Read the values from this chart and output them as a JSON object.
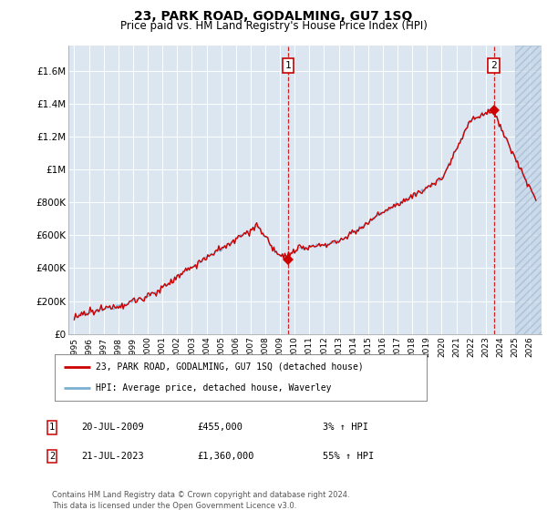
{
  "title": "23, PARK ROAD, GODALMING, GU7 1SQ",
  "subtitle": "Price paid vs. HM Land Registry's House Price Index (HPI)",
  "legend_line1": "23, PARK ROAD, GODALMING, GU7 1SQ (detached house)",
  "legend_line2": "HPI: Average price, detached house, Waverley",
  "annotation1_label": "1",
  "annotation1_date": "20-JUL-2009",
  "annotation1_value": 455000,
  "annotation1_pct": "3% ↑ HPI",
  "annotation2_label": "2",
  "annotation2_date": "21-JUL-2023",
  "annotation2_value": 1360000,
  "annotation2_pct": "55% ↑ HPI",
  "footer": "Contains HM Land Registry data © Crown copyright and database right 2024.\nThis data is licensed under the Open Government Licence v3.0.",
  "hpi_color": "#7bafd4",
  "price_color": "#cc0000",
  "bg_color": "#dce6f1",
  "hatch_color": "#c5d5e8",
  "ylim_min": 0,
  "ylim_max": 1750000,
  "yticks": [
    0,
    200000,
    400000,
    600000,
    800000,
    1000000,
    1200000,
    1400000,
    1600000
  ],
  "ytick_labels": [
    "£0",
    "£200K",
    "£400K",
    "£600K",
    "£800K",
    "£1M",
    "£1.2M",
    "£1.4M",
    "£1.6M"
  ],
  "sale1_x": 2009.542,
  "sale1_y": 455000,
  "sale2_x": 2023.548,
  "sale2_y": 1360000,
  "hatch_start": 2025.0,
  "xlim_min": 1994.6,
  "xlim_max": 2026.8
}
